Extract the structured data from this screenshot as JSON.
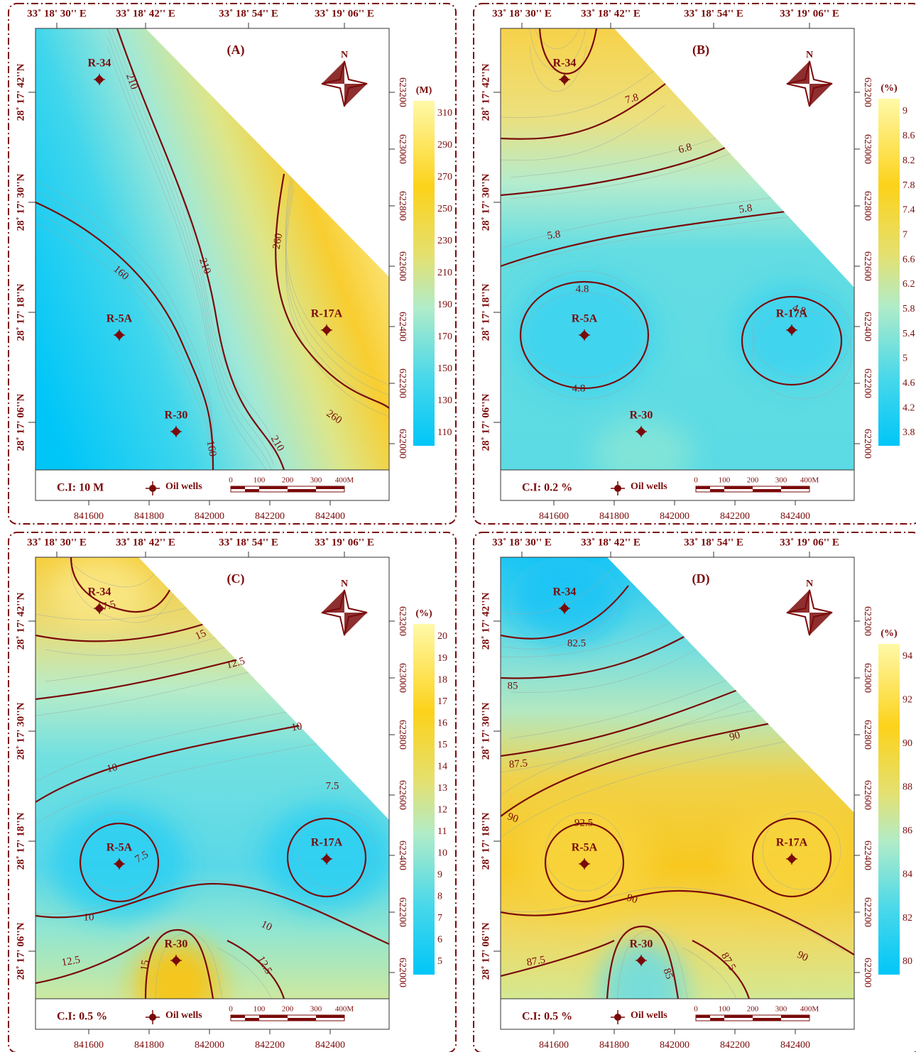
{
  "panels": [
    {
      "label": "(A)",
      "top_labels": [
        "33˚ 18' 30'' E",
        "33˚ 18' 42'' E",
        "33˚ 18' 54'' E",
        "33˚ 19' 06'' E"
      ],
      "left_labels": [
        "28˚ 17' 42''N",
        "28˚ 17' 30''N",
        "28˚ 17' 18''N",
        "28˚ 17' 06''N"
      ],
      "right_labels": [
        "623200",
        "623000",
        "622800",
        "622600",
        "622400",
        "622200",
        "622000"
      ],
      "bottom_labels": [
        "841600",
        "841800",
        "842000",
        "842200",
        "842400"
      ],
      "north": "N",
      "colorbar_unit": "(M)",
      "colorbar_ticks": [
        "310",
        "290",
        "270",
        "250",
        "230",
        "210",
        "190",
        "170",
        "150",
        "130",
        "110"
      ],
      "contour_labels": [
        "210",
        "160",
        "210",
        "260",
        "260",
        "210",
        "160"
      ],
      "wells": [
        "R-34",
        "R-5A",
        "R-30",
        "R-17A"
      ],
      "contour_interval": "C.I:  10  M",
      "legend": "Oil wells",
      "scale_labels": [
        "0",
        "100",
        "200",
        "300",
        "400M"
      ]
    },
    {
      "label": "(B)",
      "top_labels": [
        "33˚ 18' 30'' E",
        "33˚ 18' 42'' E",
        "33˚ 18' 54'' E",
        "33˚ 19' 06'' E"
      ],
      "left_labels": [
        "28˚ 17' 42''N",
        "28˚ 17' 30''N",
        "28˚ 17' 18''N",
        "28˚ 17' 06''N"
      ],
      "right_labels": [
        "623200",
        "623000",
        "622800",
        "622600",
        "622400",
        "622200",
        "622000"
      ],
      "bottom_labels": [
        "841600",
        "841800",
        "842000",
        "842200",
        "842400"
      ],
      "north": "N",
      "colorbar_unit": "(%)",
      "colorbar_ticks": [
        "9",
        "8.6",
        "8.2",
        "7.8",
        "7.4",
        "7",
        "6.6",
        "6.2",
        "5.8",
        "5.4",
        "5",
        "4.6",
        "4.2",
        "3.8"
      ],
      "contour_labels": [
        "7.8",
        "6.8",
        "5.8",
        "5.8",
        "4.8",
        "4.8",
        "4.8"
      ],
      "wells": [
        "R-34",
        "R-5A",
        "R-30",
        "R-17A"
      ],
      "contour_interval": "C.I:  0.2  %",
      "legend": "Oil wells",
      "scale_labels": [
        "0",
        "100",
        "200",
        "300",
        "400M"
      ]
    },
    {
      "label": "(C)",
      "top_labels": [
        "33˚ 18' 30'' E",
        "33˚ 18' 42'' E",
        "33˚ 18' 54'' E",
        "33˚ 19' 06'' E"
      ],
      "left_labels": [
        "28˚ 17' 42''N",
        "28˚ 17' 30''N",
        "28˚ 17' 18''N",
        "28˚ 17' 06''N"
      ],
      "right_labels": [
        "623200",
        "623000",
        "622800",
        "622600",
        "622400",
        "622200",
        "622000"
      ],
      "bottom_labels": [
        "841600",
        "841800",
        "842000",
        "842200",
        "842400"
      ],
      "north": "N",
      "colorbar_unit": "(%)",
      "colorbar_ticks": [
        "20",
        "19",
        "18",
        "17",
        "16",
        "15",
        "14",
        "13",
        "12",
        "11",
        "10",
        "9",
        "8",
        "7",
        "6",
        "5"
      ],
      "contour_labels": [
        "17.5",
        "15",
        "12.5",
        "10",
        "10",
        "7.5",
        "7.5",
        "10",
        "10",
        "12.5",
        "15",
        "12.5"
      ],
      "wells": [
        "R-34",
        "R-5A",
        "R-30",
        "R-17A"
      ],
      "contour_interval": "C.I:  0.5  %",
      "legend": "Oil wells",
      "scale_labels": [
        "0",
        "100",
        "200",
        "300",
        "400M"
      ]
    },
    {
      "label": "(D)",
      "top_labels": [
        "33˚ 18' 30'' E",
        "33˚ 18' 42'' E",
        "33˚ 18' 54'' E",
        "33˚ 19' 06'' E"
      ],
      "left_labels": [
        "28˚ 17' 42''N",
        "28˚ 17' 30''N",
        "28˚ 17' 18''N",
        "28˚ 17' 06''N"
      ],
      "right_labels": [
        "623200",
        "623000",
        "622800",
        "622600",
        "622400",
        "622200",
        "622000"
      ],
      "bottom_labels": [
        "841600",
        "841800",
        "842000",
        "842200",
        "842400"
      ],
      "north": "N",
      "colorbar_unit": "(%)",
      "colorbar_ticks": [
        "94",
        "92",
        "90",
        "88",
        "86",
        "84",
        "82",
        "80"
      ],
      "contour_labels": [
        "82.5",
        "85",
        "87.5",
        "90",
        "90",
        "92.5",
        "90",
        "87.5",
        "85",
        "87.5",
        "90"
      ],
      "wells": [
        "R-34",
        "R-5A",
        "R-30",
        "R-17A"
      ],
      "contour_interval": "C.I:  0.5  %",
      "legend": "Oil wells",
      "scale_labels": [
        "0",
        "100",
        "200",
        "300",
        "400M"
      ]
    }
  ]
}
